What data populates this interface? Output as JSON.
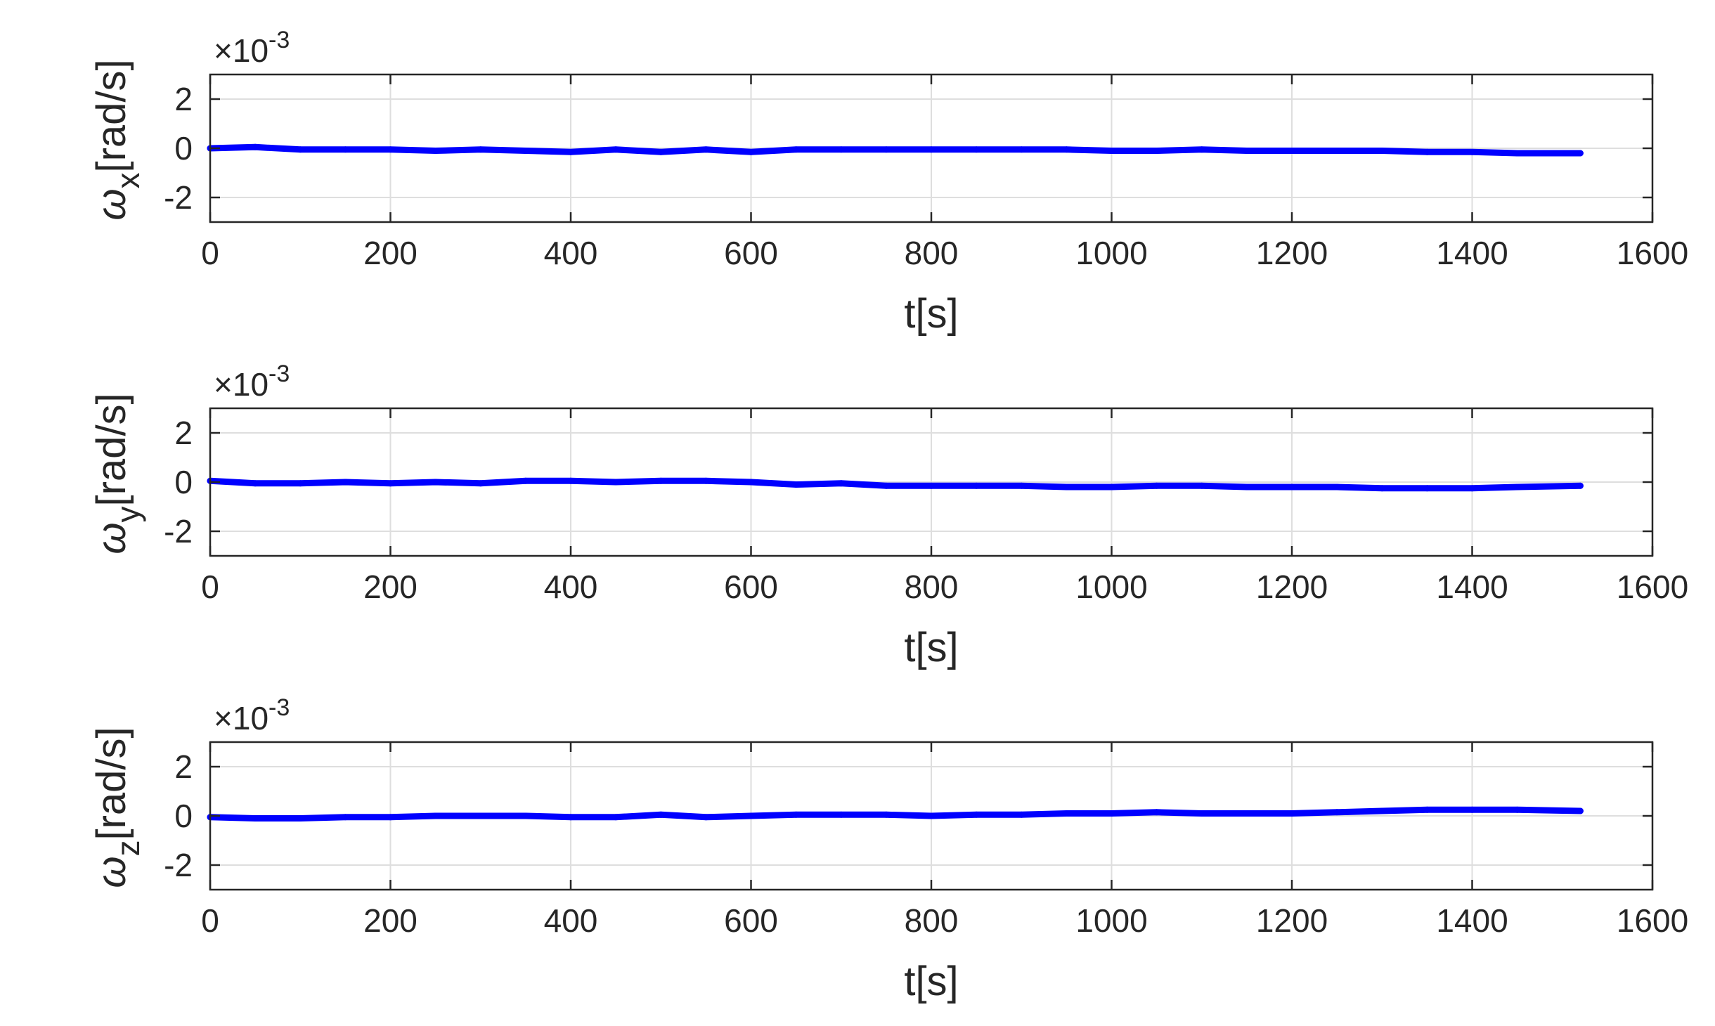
{
  "chart_data": [
    {
      "type": "line",
      "ylabel_symbol": "ω",
      "ylabel_subscript": "x",
      "ylabel_unit": "[rad/s]",
      "xlabel": "t[s]",
      "exponent_label": "×10",
      "exponent_power": "-3",
      "xlim": [
        0,
        1600
      ],
      "ylim": [
        -3,
        3
      ],
      "xticks": [
        "0",
        "200",
        "400",
        "600",
        "800",
        "1000",
        "1200",
        "1400",
        "1600"
      ],
      "yticks": [
        "2",
        "0",
        "-2"
      ],
      "grid": true,
      "series": [
        {
          "color": "#0000ff",
          "x": [
            0,
            50,
            100,
            150,
            200,
            250,
            300,
            350,
            400,
            450,
            500,
            550,
            600,
            650,
            700,
            750,
            800,
            850,
            900,
            950,
            1000,
            1050,
            1100,
            1150,
            1200,
            1250,
            1300,
            1350,
            1400,
            1450,
            1520
          ],
          "y": [
            0.0,
            0.05,
            -0.05,
            -0.05,
            -0.05,
            -0.1,
            -0.05,
            -0.1,
            -0.15,
            -0.05,
            -0.15,
            -0.05,
            -0.15,
            -0.05,
            -0.05,
            -0.05,
            -0.05,
            -0.05,
            -0.05,
            -0.05,
            -0.1,
            -0.1,
            -0.05,
            -0.1,
            -0.1,
            -0.1,
            -0.1,
            -0.15,
            -0.15,
            -0.2,
            -0.2
          ]
        }
      ]
    },
    {
      "type": "line",
      "ylabel_symbol": "ω",
      "ylabel_subscript": "y",
      "ylabel_unit": "[rad/s]",
      "xlabel": "t[s]",
      "exponent_label": "×10",
      "exponent_power": "-3",
      "xlim": [
        0,
        1600
      ],
      "ylim": [
        -3,
        3
      ],
      "xticks": [
        "0",
        "200",
        "400",
        "600",
        "800",
        "1000",
        "1200",
        "1400",
        "1600"
      ],
      "yticks": [
        "2",
        "0",
        "-2"
      ],
      "grid": true,
      "series": [
        {
          "color": "#0000ff",
          "x": [
            0,
            50,
            100,
            150,
            200,
            250,
            300,
            350,
            400,
            450,
            500,
            550,
            600,
            650,
            700,
            750,
            800,
            850,
            900,
            950,
            1000,
            1050,
            1100,
            1150,
            1200,
            1250,
            1300,
            1350,
            1400,
            1450,
            1520
          ],
          "y": [
            0.05,
            -0.05,
            -0.05,
            0.0,
            -0.05,
            0.0,
            -0.05,
            0.05,
            0.05,
            0.0,
            0.05,
            0.05,
            0.0,
            -0.1,
            -0.05,
            -0.15,
            -0.15,
            -0.15,
            -0.15,
            -0.2,
            -0.2,
            -0.15,
            -0.15,
            -0.2,
            -0.2,
            -0.2,
            -0.25,
            -0.25,
            -0.25,
            -0.2,
            -0.15
          ]
        }
      ]
    },
    {
      "type": "line",
      "ylabel_symbol": "ω",
      "ylabel_subscript": "z",
      "ylabel_unit": "[rad/s]",
      "xlabel": "t[s]",
      "exponent_label": "×10",
      "exponent_power": "-3",
      "xlim": [
        0,
        1600
      ],
      "ylim": [
        -3,
        3
      ],
      "xticks": [
        "0",
        "200",
        "400",
        "600",
        "800",
        "1000",
        "1200",
        "1400",
        "1600"
      ],
      "yticks": [
        "2",
        "0",
        "-2"
      ],
      "grid": true,
      "series": [
        {
          "color": "#0000ff",
          "x": [
            0,
            50,
            100,
            150,
            200,
            250,
            300,
            350,
            400,
            450,
            500,
            550,
            600,
            650,
            700,
            750,
            800,
            850,
            900,
            950,
            1000,
            1050,
            1100,
            1150,
            1200,
            1250,
            1300,
            1350,
            1400,
            1450,
            1520
          ],
          "y": [
            -0.05,
            -0.1,
            -0.1,
            -0.05,
            -0.05,
            0.0,
            0.0,
            0.0,
            -0.05,
            -0.05,
            0.05,
            -0.05,
            0.0,
            0.05,
            0.05,
            0.05,
            0.0,
            0.05,
            0.05,
            0.1,
            0.1,
            0.15,
            0.1,
            0.1,
            0.1,
            0.15,
            0.2,
            0.25,
            0.25,
            0.25,
            0.2
          ]
        }
      ]
    }
  ]
}
